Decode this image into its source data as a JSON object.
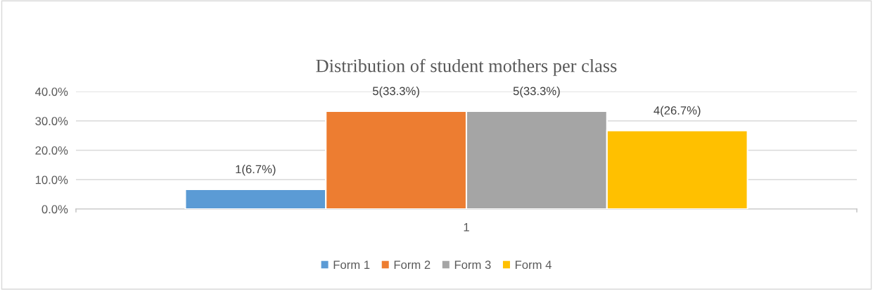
{
  "chart_data": {
    "type": "bar",
    "title": "Distribution of student mothers per class",
    "categories": [
      "1"
    ],
    "series": [
      {
        "name": "Form 1",
        "color": "#5b9bd5",
        "values": [
          6.7
        ],
        "value_labels": [
          "1(6.7%)"
        ]
      },
      {
        "name": "Form 2",
        "color": "#ed7d31",
        "values": [
          33.3
        ],
        "value_labels": [
          "5(33.3%)"
        ]
      },
      {
        "name": "Form 3",
        "color": "#a5a5a5",
        "values": [
          33.3
        ],
        "value_labels": [
          "5(33.3%)"
        ]
      },
      {
        "name": "Form 4",
        "color": "#ffc000",
        "values": [
          26.7
        ],
        "value_labels": [
          "4(26.7%)"
        ]
      }
    ],
    "ylim": [
      0,
      40
    ],
    "yticks": [
      {
        "value": 0,
        "label": "0.0%"
      },
      {
        "value": 10,
        "label": "10.0%"
      },
      {
        "value": 20,
        "label": "20.0%"
      },
      {
        "value": 30,
        "label": "30.0%"
      },
      {
        "value": 40,
        "label": "40.0%"
      }
    ],
    "grid": "y",
    "legend": "bottom"
  }
}
